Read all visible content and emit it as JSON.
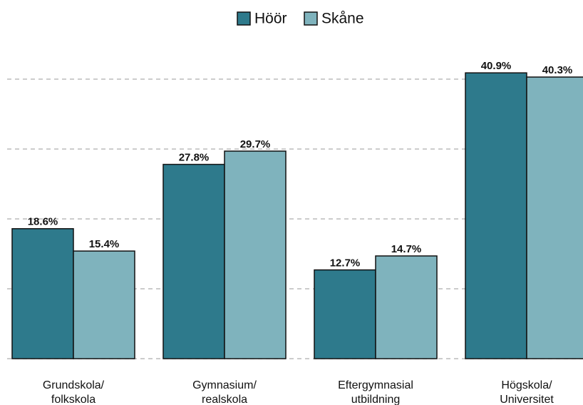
{
  "chart_data": {
    "type": "bar",
    "categories": [
      "Grundskola/\nfolkskola",
      "Gymnasium/\nrealskola",
      "Eftergymnasial\nutbildning",
      "Högskola/\nUniversitet"
    ],
    "series": [
      {
        "name": "Höör",
        "color": "#2e7a8c",
        "values": [
          18.6,
          27.8,
          12.7,
          40.9
        ],
        "value_labels": [
          "18.6%",
          "27.8%",
          "12.7%",
          "40.9%"
        ]
      },
      {
        "name": "Skåne",
        "color": "#7fb3bd",
        "values": [
          15.4,
          29.7,
          14.7,
          40.3
        ],
        "value_labels": [
          "15.4%",
          "29.7%",
          "14.7%",
          "40.3%"
        ]
      }
    ],
    "ylim": [
      0,
      45
    ],
    "yticks": [
      0,
      10,
      20,
      30,
      40
    ],
    "grid": true
  }
}
